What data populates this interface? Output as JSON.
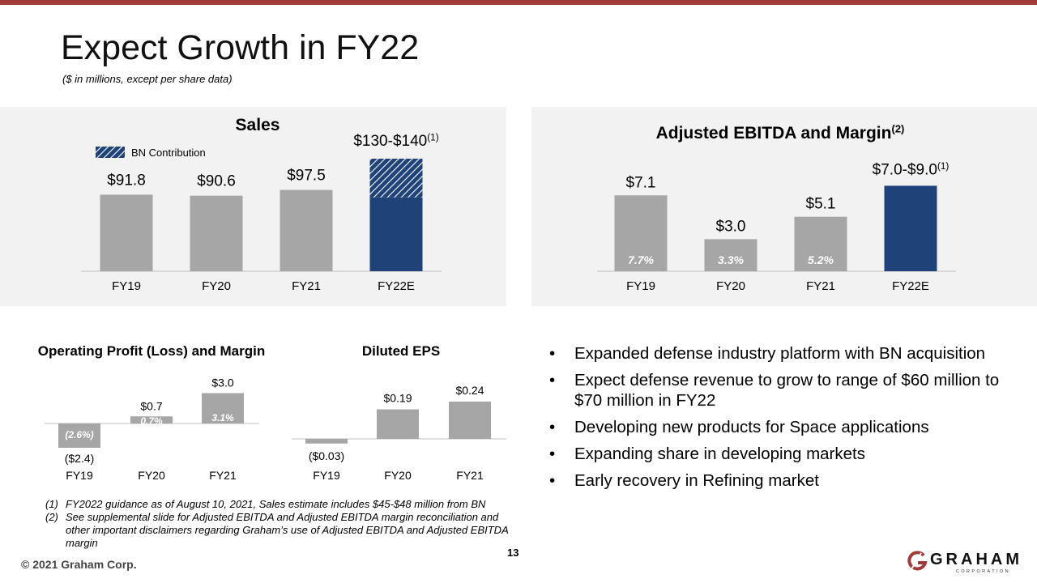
{
  "page": {
    "title": "Expect Growth in FY22",
    "subtitle": "($ in millions, except per share data)",
    "page_number": "13",
    "copyright": "© 2021 Graham Corp."
  },
  "colors": {
    "accent": "#a33a3a",
    "bar": "#a6a6a6",
    "navy": "#1f4379",
    "panel": "#f2f2f2"
  },
  "logo": {
    "name": "GRAHAM",
    "sub": "CORPORATION",
    "icon": "graham-g-logo-icon"
  },
  "bullets": [
    "Expanded defense industry platform with BN acquisition",
    "Expect defense revenue to grow to range of $60 million to $70 million in FY22",
    "Developing new products for Space applications",
    "Expanding share in developing markets",
    "Early recovery in Refining market"
  ],
  "bullet_char": "•",
  "footnotes": [
    {
      "num": "(1)",
      "text": "FY2022 guidance as of August 10, 2021, Sales estimate includes $45-$48 million from BN"
    },
    {
      "num": "(2)",
      "text": "See supplemental slide for Adjusted EBITDA and Adjusted EBITDA margin reconciliation and other important disclaimers regarding Graham’s use of Adjusted EBITDA and Adjusted EBITDA margin"
    }
  ],
  "chart_data": [
    {
      "id": "sales",
      "type": "bar",
      "title": "Sales",
      "categories": [
        "FY19",
        "FY20",
        "FY21",
        "FY22E"
      ],
      "values": [
        91.8,
        90.6,
        97.5,
        135
      ],
      "labels": [
        "$91.8",
        "$90.6",
        "$97.5",
        "$130-$140"
      ],
      "label_sup": [
        "",
        "",
        "",
        "(1)"
      ],
      "bn_contribution": [
        0,
        0,
        0,
        46.5
      ],
      "legend": "BN Contribution",
      "ylim": [
        0,
        140
      ]
    },
    {
      "id": "ebitda",
      "type": "bar",
      "title": "Adjusted EBITDA and Margin",
      "title_sup": "(2)",
      "categories": [
        "FY19",
        "FY20",
        "FY21",
        "FY22E"
      ],
      "values": [
        7.1,
        3.0,
        5.1,
        8.0
      ],
      "labels": [
        "$7.1",
        "$3.0",
        "$5.1",
        "$7.0-$9.0"
      ],
      "label_sup": [
        "",
        "",
        "",
        "(1)"
      ],
      "margins": [
        "7.7%",
        "3.3%",
        "5.2%",
        ""
      ],
      "ylim": [
        0,
        9
      ]
    },
    {
      "id": "opprofit",
      "type": "bar",
      "title": "Operating Profit (Loss) and Margin",
      "categories": [
        "FY19",
        "FY20",
        "FY21"
      ],
      "values": [
        -2.4,
        0.7,
        3.0
      ],
      "labels": [
        "($2.4)",
        "$0.7",
        "$3.0"
      ],
      "margins": [
        "(2.6%)",
        "0.7%",
        "3.1%"
      ]
    },
    {
      "id": "eps",
      "type": "bar",
      "title": "Diluted EPS",
      "categories": [
        "FY19",
        "FY20",
        "FY21"
      ],
      "values": [
        -0.03,
        0.19,
        0.24
      ],
      "labels": [
        "($0.03)",
        "$0.19",
        "$0.24"
      ]
    }
  ]
}
